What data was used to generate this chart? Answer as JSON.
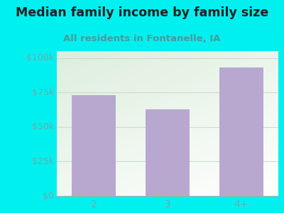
{
  "categories": [
    "2",
    "3",
    "4+"
  ],
  "values": [
    73000,
    63000,
    93000
  ],
  "bar_color": "#b8a8d0",
  "title": "Median family income by family size",
  "subtitle": "All residents in Fontanelle, IA",
  "title_fontsize": 12.5,
  "subtitle_fontsize": 9.5,
  "title_color": "#222222",
  "subtitle_color": "#4a9a9a",
  "bg_color": "#00f0f0",
  "plot_bg_color_top": "#ddeedd",
  "plot_bg_color_bottom": "#f8fff8",
  "yticks": [
    0,
    25000,
    50000,
    75000,
    100000
  ],
  "ytick_labels": [
    "$0",
    "$25k",
    "$50k",
    "$75k",
    "$100k"
  ],
  "ylim": [
    0,
    105000
  ],
  "tick_color": "#6aacac",
  "grid_color": "#ccddcc",
  "bottom_spine_color": "#aaaaaa"
}
